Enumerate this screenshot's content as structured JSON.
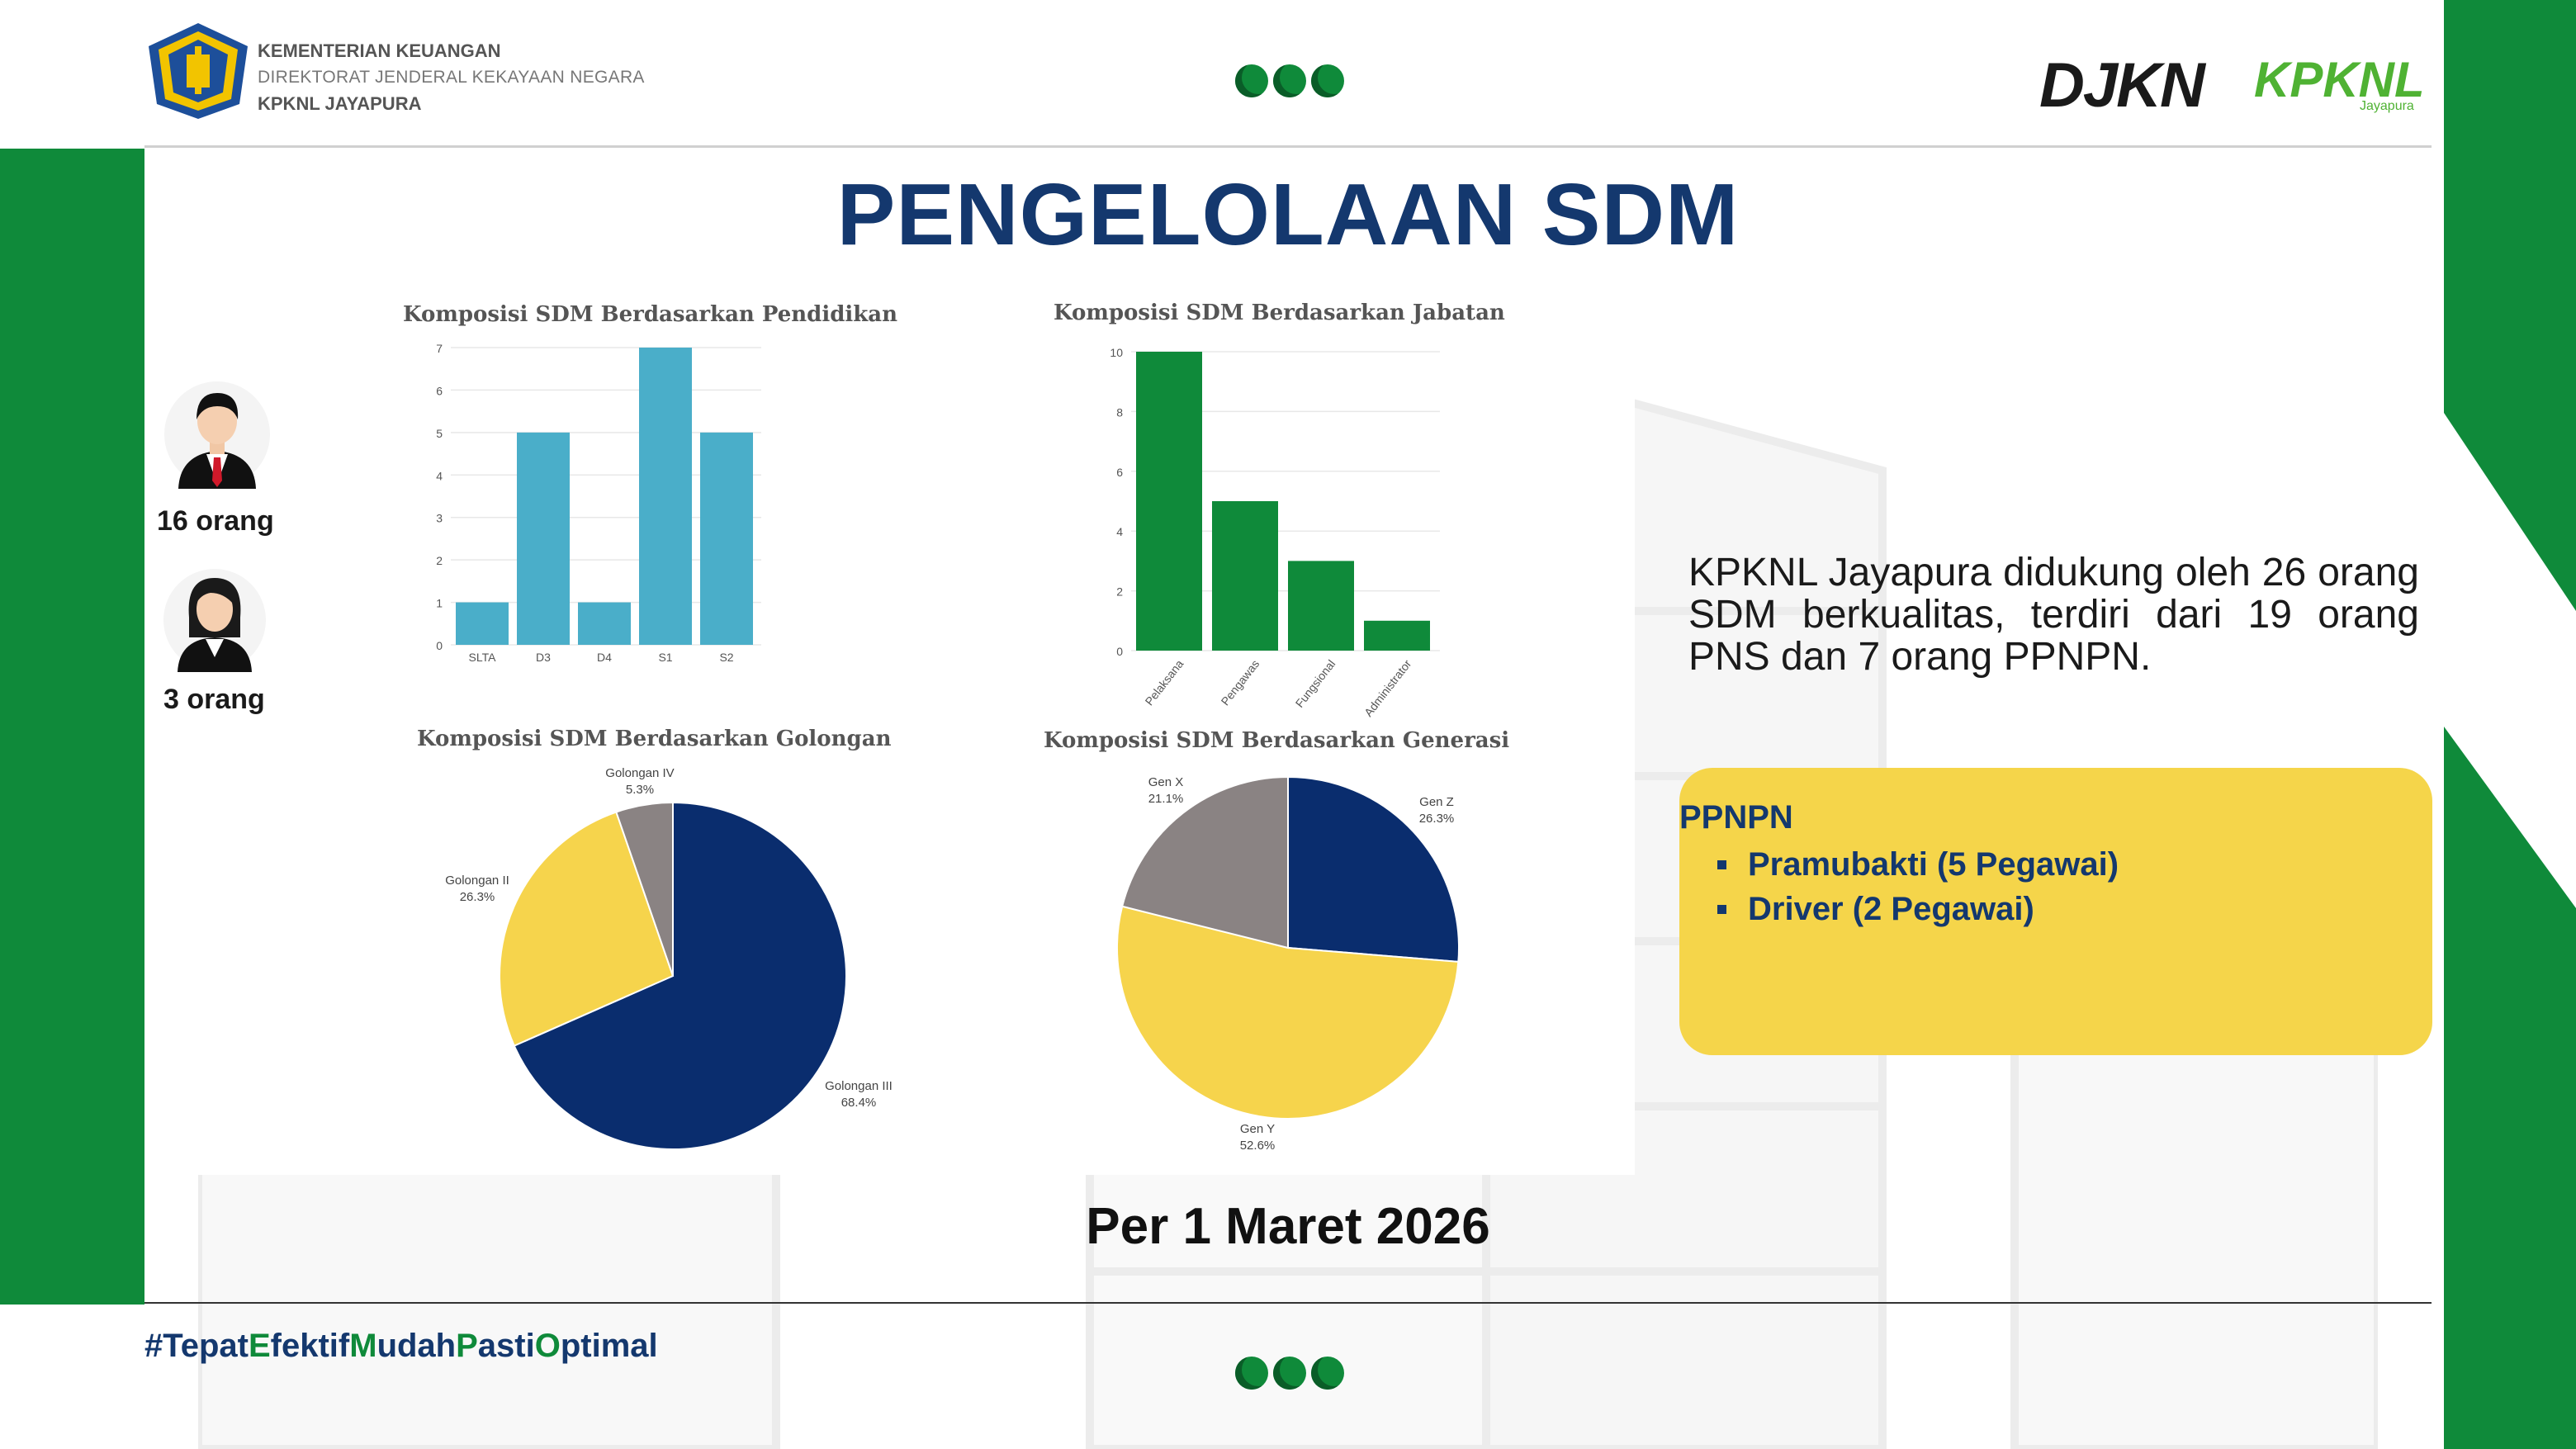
{
  "header": {
    "ministry_line1": "KEMENTERIAN KEUANGAN",
    "ministry_line2": "DIREKTORAT JENDERAL KEKAYAAN NEGARA",
    "ministry_line3": "KPKNL JAYAPURA",
    "brand_djkn": "DJKN",
    "brand_kpknl": "KPKNL",
    "brand_sub": "Jayapura"
  },
  "title": "PENGELOLAAN SDM",
  "people": {
    "male_count": "16 orang",
    "female_count": "3 orang"
  },
  "description": "KPKNL Jayapura didukung oleh 26 orang SDM berkualitas, terdiri dari 19 orang PNS dan 7 orang PPNPN.",
  "ppnpn": {
    "title": "PPNPN",
    "items": [
      "Pramubakti (5 Pegawai)",
      "Driver (2 Pegawai)"
    ]
  },
  "date": "Per 1 Maret 2026",
  "hashtag": {
    "hash": "#",
    "w1": "Tepat",
    "w2": "E",
    "w2b": "fektif",
    "w3": "M",
    "w3b": "udah",
    "w4": "P",
    "w4b": "asti",
    "w5": "O",
    "w5b": "ptimal"
  },
  "colors": {
    "green": "#0f8a3a",
    "navy": "#14386e",
    "yellow": "#f5d54a",
    "teal_bar": "#4aaec9",
    "jabatan_bar": "#0f8a3a",
    "pie_navy": "#0a2d6e",
    "pie_yellow": "#f6d44c",
    "pie_gray": "#8a8383"
  },
  "chart_data": [
    {
      "type": "bar",
      "title": "Komposisi SDM Berdasarkan Pendidikan",
      "categories": [
        "SLTA",
        "D3",
        "D4",
        "S1",
        "S2"
      ],
      "values": [
        1,
        5,
        1,
        7,
        5
      ],
      "ylim": [
        0,
        7
      ],
      "yticks": [
        "0",
        "1",
        "2",
        "3",
        "4",
        "5",
        "6",
        "7"
      ]
    },
    {
      "type": "bar",
      "title": "Komposisi SDM Berdasarkan Jabatan",
      "categories": [
        "Pelaksana",
        "Pengawas",
        "Fungsional",
        "Administrator"
      ],
      "values": [
        10,
        5,
        3,
        1
      ],
      "ylim": [
        0,
        10
      ],
      "yticks": [
        "0",
        "2",
        "4",
        "6",
        "8",
        "10"
      ]
    },
    {
      "type": "pie",
      "title": "Komposisi SDM Berdasarkan Golongan",
      "slices": [
        {
          "label": "Golongan III",
          "pct": "68.4%",
          "value": 68.4
        },
        {
          "label": "Golongan II",
          "pct": "26.3%",
          "value": 26.3
        },
        {
          "label": "Golongan IV",
          "pct": "5.3%",
          "value": 5.3
        }
      ]
    },
    {
      "type": "pie",
      "title": "Komposisi SDM Berdasarkan Generasi",
      "slices": [
        {
          "label": "Gen Z",
          "pct": "26.3%",
          "value": 26.3
        },
        {
          "label": "Gen Y",
          "pct": "52.6%",
          "value": 52.6
        },
        {
          "label": "Gen X",
          "pct": "21.1%",
          "value": 21.1
        }
      ]
    }
  ]
}
